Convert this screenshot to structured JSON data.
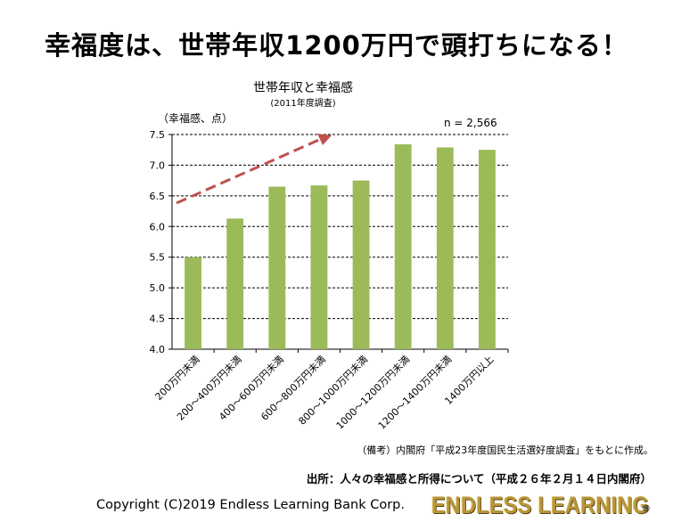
{
  "headline": "幸福度は、世帯年収1200万円で頭打ちになる！",
  "chart_data": {
    "type": "bar",
    "title": "世帯年収と幸福感",
    "subtitle": "(2011年度調査)",
    "ylabel": "（幸福感、点）",
    "annotation": "n = 2,566",
    "categories": [
      "200万円未満",
      "200～400万円未満",
      "400～600万円未満",
      "600～800万円未満",
      "800～1000万円未満",
      "1000～1200万円未満",
      "1200～1400万円未満",
      "1400万円以上"
    ],
    "values": [
      5.5,
      6.13,
      6.65,
      6.67,
      6.75,
      7.34,
      7.29,
      7.25
    ],
    "ylim": [
      4.0,
      7.5
    ],
    "yticks": [
      "4.0",
      "4.5",
      "5.0",
      "5.5",
      "6.0",
      "6.5",
      "7.0",
      "7.5"
    ],
    "grid": true,
    "bar_color": "#9bbb59",
    "trend_arrow_color": "#c0504d"
  },
  "source_note": "（備考）内閣府「平成23年度国民生活選好度調査」をもとに作成。",
  "source": "出所：人々の幸福感と所得について（平成２６年２月１４日内閣府）",
  "copyright": "Copyright (C)2019 Endless Learning Bank Corp.",
  "brand": {
    "name": "ENDLESS LEARNING",
    "mark": "®"
  }
}
